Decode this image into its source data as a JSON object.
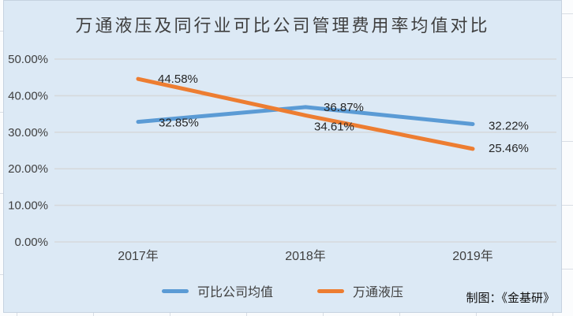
{
  "title": "万通液压及同行业可比公司管理费用率均值对比",
  "credit": "制图：《金基研》",
  "chart_data": {
    "type": "line",
    "categories": [
      "2017年",
      "2018年",
      "2019年"
    ],
    "series": [
      {
        "name": "可比公司均值",
        "color": "#5B9BD5",
        "values": [
          32.85,
          36.87,
          32.22
        ],
        "point_labels": [
          "32.85%",
          "36.87%",
          "32.22%"
        ]
      },
      {
        "name": "万通液压",
        "color": "#ED7D31",
        "values": [
          44.58,
          34.61,
          25.46
        ],
        "point_labels": [
          "44.58%",
          "34.61%",
          "25.46%"
        ]
      }
    ],
    "title": "万通液压及同行业可比公司管理费用率均值对比",
    "xlabel": "",
    "ylabel": "",
    "ylim": [
      0,
      50
    ],
    "y_ticks": [
      "0.00%",
      "10.00%",
      "20.00%",
      "30.00%",
      "40.00%",
      "50.00%"
    ],
    "grid": true,
    "legend_position": "bottom",
    "background_color": "#dce9f5",
    "gridline_color": "#d6d9dc"
  }
}
